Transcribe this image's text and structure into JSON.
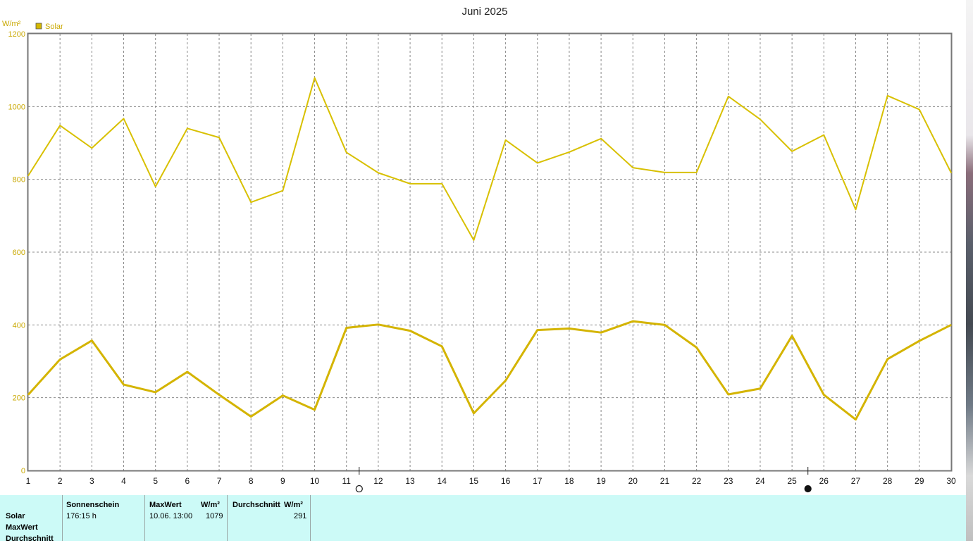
{
  "chart_data": {
    "type": "line",
    "title": "Juni 2025",
    "ylabel": "W/m²",
    "ylim": [
      0,
      1200
    ],
    "yticks": [
      0,
      200,
      400,
      600,
      800,
      1000,
      1200
    ],
    "x": [
      1,
      2,
      3,
      4,
      5,
      6,
      7,
      8,
      9,
      10,
      11,
      12,
      13,
      14,
      15,
      16,
      17,
      18,
      19,
      20,
      21,
      22,
      23,
      24,
      25,
      26,
      27,
      28,
      29,
      30
    ],
    "legend": [
      {
        "name": "Solar",
        "color": "#d4b800"
      }
    ],
    "grid": true,
    "series": [
      {
        "name": "Solar",
        "role": "max",
        "color": "#d8c000",
        "values": [
          810,
          948,
          886,
          967,
          780,
          940,
          915,
          737,
          769,
          1079,
          874,
          818,
          788,
          788,
          633,
          908,
          845,
          875,
          912,
          832,
          819,
          819,
          1028,
          965,
          877,
          922,
          717,
          1030,
          992,
          818
        ]
      },
      {
        "name": "Solar",
        "role": "average",
        "color": "#d4b400",
        "values": [
          208,
          305,
          357,
          236,
          215,
          271,
          208,
          148,
          206,
          167,
          392,
          401,
          384,
          341,
          157,
          247,
          386,
          390,
          379,
          410,
          400,
          338,
          209,
          225,
          370,
          208,
          140,
          306,
          356,
          400
        ]
      }
    ],
    "moon_phases": [
      {
        "day": 11.4,
        "phase": "full-moon"
      },
      {
        "day": 25.5,
        "phase": "new-moon"
      }
    ]
  },
  "stats": {
    "row_labels": [
      "Solar",
      "MaxWert",
      "Durchschnitt"
    ],
    "sunshine": {
      "header": "Sonnenschein",
      "value": "176:15 h"
    },
    "max": {
      "header": "MaxWert",
      "unit": "W/m²",
      "datetime": "10.06.  13:00",
      "value": "1079"
    },
    "avg": {
      "header": "Durchschnitt",
      "unit": "W/m²",
      "value": "291"
    }
  }
}
